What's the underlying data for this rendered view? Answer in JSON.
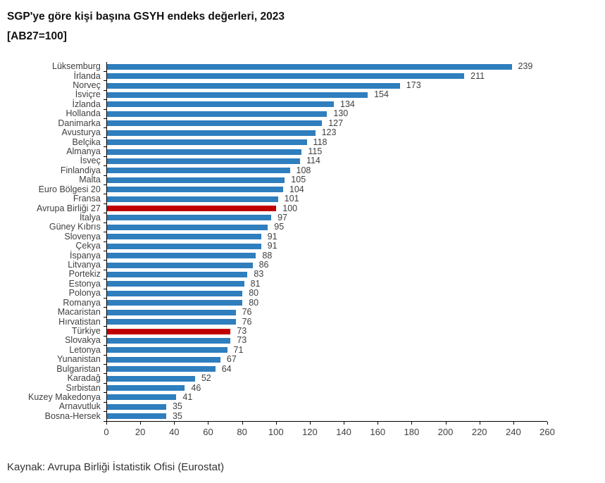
{
  "title": {
    "line1": "SGP'ye göre kişi başına GSYH endeks değerleri, 2023",
    "line2": "[AB27=100]"
  },
  "source": "Kaynak: Avrupa Birliği İstatistik Ofisi (Eurostat)",
  "chart_data": {
    "type": "bar",
    "orientation": "horizontal",
    "title": "SGP'ye göre kişi başına GSYH endeks değerleri, 2023 [AB27=100]",
    "categories": [
      "Lüksemburg",
      "İrlanda",
      "Norveç",
      "İsviçre",
      "İzlanda",
      "Hollanda",
      "Danimarka",
      "Avusturya",
      "Belçika",
      "Almanya",
      "İsveç",
      "Finlandiya",
      "Malta",
      "Euro Bölgesi 20",
      "Fransa",
      "Avrupa Birliği 27",
      "İtalya",
      "Güney Kıbrıs",
      "Slovenya",
      "Çekya",
      "İspanya",
      "Litvanya",
      "Portekiz",
      "Estonya",
      "Polonya",
      "Romanya",
      "Macaristan",
      "Hırvatistan",
      "Türkiye",
      "Slovakya",
      "Letonya",
      "Yunanistan",
      "Bulgaristan",
      "Karadağ",
      "Sırbistan",
      "Kuzey Makedonya",
      "Arnavutluk",
      "Bosna-Hersek"
    ],
    "values": [
      239,
      211,
      173,
      154,
      134,
      130,
      127,
      123,
      118,
      115,
      114,
      108,
      105,
      104,
      101,
      100,
      97,
      95,
      91,
      91,
      88,
      86,
      83,
      81,
      80,
      80,
      76,
      76,
      73,
      73,
      71,
      67,
      64,
      52,
      46,
      41,
      35,
      35
    ],
    "highlight_indices": [
      15,
      28
    ],
    "colors": {
      "bar": "#2F7EBE",
      "highlight": "#C00000",
      "axis": "#000000",
      "label_text": "#3f3f3f"
    },
    "xlabel": "",
    "ylabel": "",
    "xlim": [
      0,
      260
    ],
    "xticks": [
      0,
      20,
      40,
      60,
      80,
      100,
      120,
      140,
      160,
      180,
      200,
      220,
      240,
      260
    ],
    "grid": false,
    "legend": false,
    "value_labels": true
  }
}
